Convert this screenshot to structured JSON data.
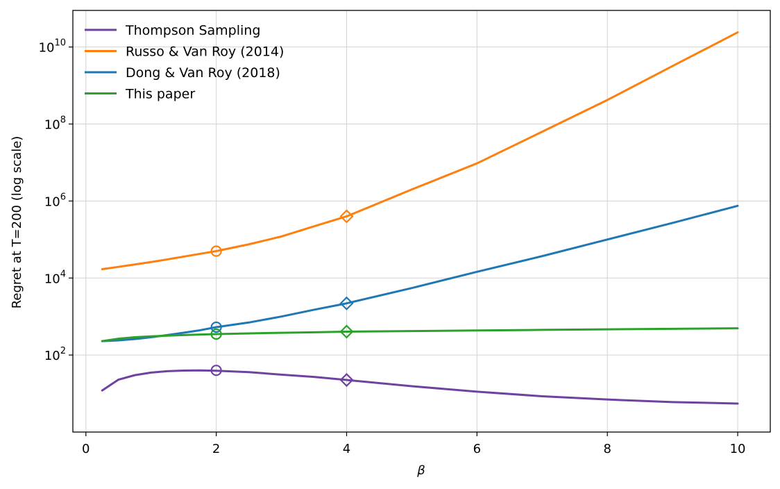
{
  "chart_data": {
    "type": "line",
    "title": "",
    "xlabel": "β",
    "ylabel": "Regret at T=200 (log scale)",
    "xscale": "linear",
    "yscale": "log",
    "xlim": [
      -0.2,
      10.5
    ],
    "ylim_exponent": [
      0.0,
      10.95
    ],
    "grid": true,
    "legend_position": "top-left",
    "x_ticks": [
      0,
      2,
      4,
      6,
      8,
      10
    ],
    "x_tick_labels": [
      "0",
      "2",
      "4",
      "6",
      "8",
      "10"
    ],
    "y_ticks": [
      2,
      4,
      6,
      8,
      10
    ],
    "y_tick_labels": [
      {
        "base": "10",
        "exp": "2"
      },
      {
        "base": "10",
        "exp": "4"
      },
      {
        "base": "10",
        "exp": "6"
      },
      {
        "base": "10",
        "exp": "8"
      },
      {
        "base": "10",
        "exp": "10"
      }
    ],
    "x": [
      0.25,
      0.5,
      0.75,
      1.0,
      1.25,
      1.5,
      1.75,
      2.0,
      2.5,
      3.0,
      3.5,
      4.0,
      5.0,
      6.0,
      7.0,
      8.0,
      9.0,
      10.0
    ],
    "series": [
      {
        "name": "Thompson Sampling",
        "color": "#6f42a0",
        "y": [
          12,
          23,
          30,
          35,
          38,
          39.5,
          40,
          39,
          36,
          31,
          27,
          22.5,
          15.5,
          11.2,
          8.5,
          7.0,
          6.0,
          5.5
        ],
        "markers": [
          {
            "x": 2,
            "y": 40,
            "shape": "circle"
          },
          {
            "x": 4,
            "y": 22.5,
            "shape": "diamond"
          }
        ]
      },
      {
        "name": "Russo & Van Roy (2014)",
        "color": "#ff7f0e",
        "y": [
          17000,
          19500,
          22500,
          26000,
          30500,
          36000,
          42500,
          50000,
          75000,
          120000,
          220000,
          400000,
          2000000,
          9500000,
          63000000,
          420000000,
          3200000000,
          24000000000
        ],
        "markers": [
          {
            "x": 2,
            "y": 50000,
            "shape": "circle"
          },
          {
            "x": 4,
            "y": 400000,
            "shape": "diamond"
          }
        ]
      },
      {
        "name": "Dong & Van Roy (2018)",
        "color": "#1f77b4",
        "y": [
          230,
          240,
          260,
          290,
          330,
          380,
          440,
          530,
          700,
          1000,
          1500,
          2200,
          5500,
          14500,
          37000,
          100000,
          270000,
          750000
        ],
        "markers": [
          {
            "x": 2,
            "y": 530,
            "shape": "circle"
          },
          {
            "x": 4,
            "y": 2200,
            "shape": "diamond"
          }
        ]
      },
      {
        "name": "This paper",
        "color": "#2ca02c",
        "y": [
          230,
          265,
          290,
          305,
          318,
          330,
          340,
          350,
          365,
          378,
          390,
          405,
          420,
          435,
          450,
          465,
          480,
          495
        ],
        "markers": [
          {
            "x": 2,
            "y": 350,
            "shape": "circle"
          },
          {
            "x": 4,
            "y": 405,
            "shape": "diamond"
          }
        ]
      }
    ]
  }
}
